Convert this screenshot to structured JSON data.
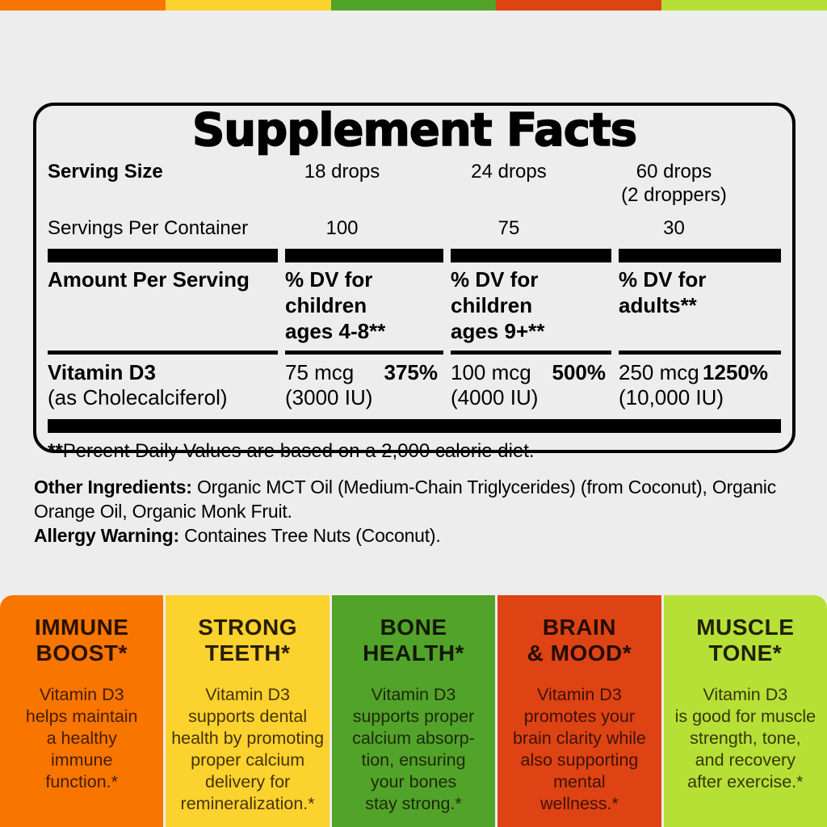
{
  "top_bar": {
    "colors": [
      "#f87500",
      "#fcd22e",
      "#52a32a",
      "#de4314",
      "#b7e036"
    ]
  },
  "facts": {
    "title": "Supplement Facts",
    "serving_size": {
      "label": "Serving Size",
      "values": [
        "18 drops",
        "24 drops",
        "60 drops\n(2 droppers)"
      ]
    },
    "servings_per_container": {
      "label": "Servings Per Container",
      "values": [
        "100",
        "75",
        "30"
      ]
    },
    "amount_per_serving_label": "Amount Per Serving",
    "dv_column_headers": [
      "% DV for\nchildren\nages 4-8**",
      "% DV for\nchildren\nages 9+**",
      "% DV for\nadults**"
    ],
    "vitamin": {
      "name": "Vitamin D3",
      "form": "(as Cholecalciferol)",
      "doses": [
        {
          "amount": "75 mcg",
          "percent_dv": "375%",
          "iu": "(3000 IU)"
        },
        {
          "amount": "100 mcg",
          "percent_dv": "500%",
          "iu": "(4000 IU)"
        },
        {
          "amount": "250 mcg",
          "percent_dv": "1250%",
          "iu": "(10,000 IU)"
        }
      ]
    },
    "footnote_marker": "**",
    "footnote_text": "Percent Daily Values are based on a 2,000 calorie diet."
  },
  "ingredients": {
    "other_label": "Other Ingredients:",
    "other_text": " Organic MCT Oil (Medium-Chain Triglycerides) (from Coconut), Organic Orange Oil, Organic Monk Fruit.",
    "allergy_label": "Allergy Warning:",
    "allergy_text": " Containes Tree Nuts (Coconut)."
  },
  "benefits": [
    {
      "color": "#f87500",
      "title": "IMMUNE\nBOOST*",
      "body": "Vitamin D3\nhelps maintain\na healthy\nimmune\nfunction.*"
    },
    {
      "color": "#fcd22e",
      "title": "STRONG\nTEETH*",
      "body": "Vitamin D3\nsupports dental\nhealth by promoting\nproper calcium\ndelivery for\nremineralization.*"
    },
    {
      "color": "#52a32a",
      "title": "BONE\nHEALTH*",
      "body": "Vitamin D3\nsupports proper\ncalcium absorp-\ntion, ensuring\nyour bones\nstay strong.*"
    },
    {
      "color": "#de4314",
      "title": "BRAIN\n& MOOD*",
      "body": "Vitamin D3\npromotes your\nbrain clarity while\nalso supporting\nmental\nwellness.*"
    },
    {
      "color": "#b7e036",
      "title": "MUSCLE\nTONE*",
      "body": "Vitamin D3\nis good for muscle\nstrength, tone,\nand recovery\nafter exercise.*"
    }
  ]
}
